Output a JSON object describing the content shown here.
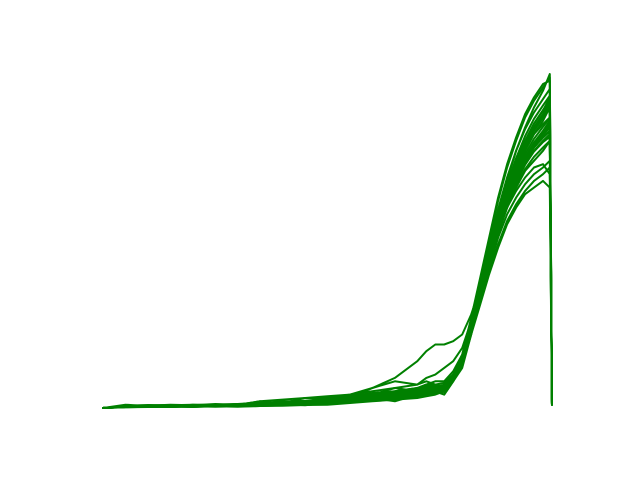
{
  "chart_data": {
    "type": "line",
    "title": "",
    "xlabel": "",
    "ylabel": "",
    "axes_visible": false,
    "grid": false,
    "legend": "none",
    "line_color": "#008000",
    "xlim": [
      0,
      1
    ],
    "ylim": [
      0,
      1
    ],
    "series_count": 30,
    "x": [
      0.0,
      0.05,
      0.1,
      0.15,
      0.2,
      0.25,
      0.3,
      0.35,
      0.4,
      0.45,
      0.5,
      0.55,
      0.6,
      0.65,
      0.7,
      0.72,
      0.74,
      0.76,
      0.78,
      0.8,
      0.82,
      0.84,
      0.86,
      0.88,
      0.9,
      0.92,
      0.94,
      0.96,
      0.98,
      0.995,
      1.0
    ],
    "series": [
      {
        "values": [
          0.0,
          0.005,
          0.003,
          0.008,
          0.004,
          0.006,
          0.01,
          0.02,
          0.012,
          0.008,
          0.015,
          0.02,
          0.025,
          0.03,
          0.035,
          0.05,
          0.05,
          0.04,
          0.08,
          0.12,
          0.22,
          0.34,
          0.46,
          0.58,
          0.68,
          0.77,
          0.84,
          0.9,
          0.95,
          1.0,
          0.01
        ]
      },
      {
        "values": [
          0.0,
          0.004,
          0.006,
          0.003,
          0.007,
          0.005,
          0.008,
          0.012,
          0.02,
          0.01,
          0.02,
          0.03,
          0.04,
          0.06,
          0.07,
          0.09,
          0.1,
          0.12,
          0.14,
          0.18,
          0.26,
          0.36,
          0.47,
          0.57,
          0.66,
          0.73,
          0.79,
          0.84,
          0.88,
          0.92,
          0.01
        ]
      },
      {
        "values": [
          0.0,
          0.01,
          0.005,
          0.004,
          0.01,
          0.008,
          0.006,
          0.01,
          0.015,
          0.03,
          0.03,
          0.04,
          0.06,
          0.08,
          0.07,
          0.08,
          0.07,
          0.05,
          0.09,
          0.14,
          0.24,
          0.35,
          0.46,
          0.56,
          0.64,
          0.71,
          0.77,
          0.82,
          0.86,
          0.9,
          0.01
        ]
      },
      {
        "values": [
          0.0,
          0.003,
          0.004,
          0.006,
          0.005,
          0.004,
          0.005,
          0.006,
          0.008,
          0.01,
          0.012,
          0.02,
          0.03,
          0.02,
          0.04,
          0.05,
          0.06,
          0.07,
          0.1,
          0.15,
          0.25,
          0.36,
          0.47,
          0.58,
          0.67,
          0.74,
          0.8,
          0.85,
          0.89,
          0.93,
          0.01
        ]
      },
      {
        "values": [
          0.0,
          0.006,
          0.007,
          0.01,
          0.008,
          0.012,
          0.01,
          0.02,
          0.025,
          0.03,
          0.035,
          0.04,
          0.05,
          0.06,
          0.05,
          0.06,
          0.05,
          0.04,
          0.08,
          0.13,
          0.23,
          0.33,
          0.43,
          0.53,
          0.6,
          0.66,
          0.71,
          0.74,
          0.77,
          0.8,
          0.01
        ]
      },
      {
        "values": [
          0.0,
          0.005,
          0.004,
          0.005,
          0.006,
          0.007,
          0.009,
          0.008,
          0.01,
          0.012,
          0.018,
          0.02,
          0.03,
          0.04,
          0.06,
          0.07,
          0.07,
          0.06,
          0.09,
          0.14,
          0.23,
          0.33,
          0.42,
          0.51,
          0.58,
          0.63,
          0.67,
          0.7,
          0.72,
          0.74,
          0.01
        ]
      },
      {
        "values": [
          0.0,
          0.002,
          0.003,
          0.004,
          0.003,
          0.005,
          0.004,
          0.006,
          0.007,
          0.009,
          0.01,
          0.015,
          0.02,
          0.025,
          0.03,
          0.035,
          0.04,
          0.05,
          0.09,
          0.15,
          0.26,
          0.38,
          0.5,
          0.62,
          0.72,
          0.8,
          0.87,
          0.92,
          0.96,
          0.99,
          0.01
        ]
      },
      {
        "values": [
          0.0,
          0.007,
          0.009,
          0.008,
          0.01,
          0.009,
          0.011,
          0.014,
          0.02,
          0.02,
          0.025,
          0.035,
          0.045,
          0.05,
          0.06,
          0.07,
          0.08,
          0.08,
          0.11,
          0.16,
          0.25,
          0.35,
          0.44,
          0.53,
          0.6,
          0.65,
          0.69,
          0.72,
          0.73,
          0.7,
          0.01
        ]
      },
      {
        "values": [
          0.0,
          0.004,
          0.005,
          0.003,
          0.005,
          0.006,
          0.008,
          0.01,
          0.012,
          0.015,
          0.02,
          0.03,
          0.06,
          0.09,
          0.14,
          0.17,
          0.19,
          0.19,
          0.2,
          0.22,
          0.28,
          0.36,
          0.45,
          0.54,
          0.62,
          0.69,
          0.75,
          0.79,
          0.82,
          0.85,
          0.01
        ]
      },
      {
        "values": [
          0.0,
          0.003,
          0.005,
          0.006,
          0.007,
          0.008,
          0.007,
          0.009,
          0.011,
          0.013,
          0.016,
          0.022,
          0.03,
          0.035,
          0.045,
          0.05,
          0.055,
          0.05,
          0.08,
          0.13,
          0.22,
          0.31,
          0.4,
          0.48,
          0.55,
          0.6,
          0.64,
          0.66,
          0.68,
          0.66,
          0.01
        ]
      },
      {
        "values": [
          0.0,
          0.005,
          0.006,
          0.007,
          0.006,
          0.01,
          0.012,
          0.015,
          0.018,
          0.022,
          0.028,
          0.03,
          0.035,
          0.04,
          0.045,
          0.05,
          0.055,
          0.06,
          0.1,
          0.16,
          0.27,
          0.39,
          0.51,
          0.63,
          0.73,
          0.81,
          0.88,
          0.93,
          0.97,
          0.98,
          0.01
        ]
      },
      {
        "values": [
          0.0,
          0.006,
          0.004,
          0.008,
          0.007,
          0.005,
          0.009,
          0.012,
          0.016,
          0.02,
          0.024,
          0.028,
          0.04,
          0.05,
          0.06,
          0.065,
          0.07,
          0.075,
          0.1,
          0.15,
          0.24,
          0.34,
          0.44,
          0.54,
          0.62,
          0.69,
          0.74,
          0.78,
          0.81,
          0.83,
          0.01
        ]
      },
      {
        "values": [
          0.0,
          0.004,
          0.003,
          0.005,
          0.004,
          0.006,
          0.007,
          0.008,
          0.009,
          0.011,
          0.013,
          0.017,
          0.022,
          0.028,
          0.035,
          0.04,
          0.045,
          0.05,
          0.09,
          0.15,
          0.25,
          0.36,
          0.47,
          0.57,
          0.66,
          0.73,
          0.78,
          0.82,
          0.85,
          0.87,
          0.01
        ]
      },
      {
        "values": [
          0.0,
          0.003,
          0.006,
          0.005,
          0.008,
          0.007,
          0.01,
          0.009,
          0.013,
          0.016,
          0.019,
          0.024,
          0.03,
          0.038,
          0.046,
          0.052,
          0.058,
          0.055,
          0.085,
          0.14,
          0.24,
          0.35,
          0.46,
          0.56,
          0.65,
          0.72,
          0.78,
          0.83,
          0.87,
          0.9,
          0.01
        ]
      },
      {
        "values": [
          0.0,
          0.005,
          0.007,
          0.006,
          0.009,
          0.008,
          0.011,
          0.013,
          0.015,
          0.018,
          0.023,
          0.027,
          0.033,
          0.04,
          0.05,
          0.058,
          0.065,
          0.06,
          0.09,
          0.14,
          0.23,
          0.32,
          0.41,
          0.49,
          0.56,
          0.61,
          0.65,
          0.68,
          0.7,
          0.72,
          0.01
        ]
      },
      {
        "values": [
          0.0,
          0.002,
          0.004,
          0.004,
          0.006,
          0.005,
          0.006,
          0.008,
          0.01,
          0.012,
          0.015,
          0.018,
          0.024,
          0.03,
          0.036,
          0.042,
          0.048,
          0.052,
          0.09,
          0.155,
          0.265,
          0.375,
          0.485,
          0.595,
          0.69,
          0.77,
          0.835,
          0.885,
          0.925,
          0.955,
          0.01
        ]
      },
      {
        "values": [
          0.0,
          0.006,
          0.005,
          0.007,
          0.005,
          0.007,
          0.009,
          0.011,
          0.014,
          0.017,
          0.021,
          0.026,
          0.032,
          0.039,
          0.047,
          0.054,
          0.06,
          0.063,
          0.095,
          0.148,
          0.238,
          0.334,
          0.43,
          0.52,
          0.6,
          0.665,
          0.715,
          0.752,
          0.78,
          0.8,
          0.01
        ]
      },
      {
        "values": [
          0.0,
          0.004,
          0.006,
          0.005,
          0.006,
          0.006,
          0.008,
          0.01,
          0.013,
          0.016,
          0.02,
          0.025,
          0.031,
          0.037,
          0.044,
          0.05,
          0.056,
          0.058,
          0.092,
          0.146,
          0.24,
          0.34,
          0.44,
          0.535,
          0.62,
          0.69,
          0.746,
          0.79,
          0.826,
          0.854,
          0.01
        ]
      },
      {
        "values": [
          0.0,
          0.005,
          0.003,
          0.006,
          0.005,
          0.009,
          0.01,
          0.012,
          0.014,
          0.017,
          0.022,
          0.028,
          0.036,
          0.045,
          0.055,
          0.062,
          0.068,
          0.066,
          0.098,
          0.15,
          0.245,
          0.345,
          0.445,
          0.54,
          0.625,
          0.695,
          0.75,
          0.795,
          0.83,
          0.86,
          0.01
        ]
      },
      {
        "values": [
          0.0,
          0.003,
          0.004,
          0.005,
          0.004,
          0.005,
          0.007,
          0.009,
          0.011,
          0.013,
          0.017,
          0.021,
          0.026,
          0.032,
          0.039,
          0.045,
          0.05,
          0.048,
          0.082,
          0.138,
          0.235,
          0.34,
          0.447,
          0.55,
          0.642,
          0.72,
          0.784,
          0.836,
          0.878,
          0.91,
          0.01
        ]
      },
      {
        "values": [
          0.0,
          0.005,
          0.005,
          0.006,
          0.006,
          0.008,
          0.009,
          0.011,
          0.012,
          0.015,
          0.019,
          0.024,
          0.03,
          0.036,
          0.043,
          0.049,
          0.054,
          0.056,
          0.089,
          0.143,
          0.236,
          0.335,
          0.434,
          0.528,
          0.61,
          0.678,
          0.73,
          0.77,
          0.8,
          0.82,
          0.01
        ]
      },
      {
        "values": [
          0.0,
          0.006,
          0.006,
          0.009,
          0.007,
          0.01,
          0.012,
          0.014,
          0.017,
          0.021,
          0.026,
          0.031,
          0.037,
          0.044,
          0.052,
          0.058,
          0.063,
          0.062,
          0.094,
          0.147,
          0.24,
          0.338,
          0.436,
          0.53,
          0.614,
          0.684,
          0.74,
          0.782,
          0.812,
          0.83,
          0.01
        ]
      },
      {
        "values": [
          0.0,
          0.004,
          0.004,
          0.004,
          0.005,
          0.006,
          0.007,
          0.008,
          0.01,
          0.012,
          0.015,
          0.019,
          0.024,
          0.03,
          0.037,
          0.043,
          0.048,
          0.05,
          0.086,
          0.145,
          0.248,
          0.358,
          0.468,
          0.574,
          0.668,
          0.748,
          0.814,
          0.866,
          0.906,
          0.935,
          0.01
        ]
      },
      {
        "values": [
          0.0,
          0.005,
          0.007,
          0.006,
          0.007,
          0.007,
          0.01,
          0.012,
          0.015,
          0.018,
          0.022,
          0.027,
          0.034,
          0.041,
          0.049,
          0.056,
          0.062,
          0.061,
          0.093,
          0.146,
          0.238,
          0.336,
          0.434,
          0.528,
          0.612,
          0.682,
          0.738,
          0.78,
          0.81,
          0.828,
          0.01
        ]
      },
      {
        "values": [
          0.0,
          0.003,
          0.005,
          0.004,
          0.006,
          0.006,
          0.008,
          0.01,
          0.012,
          0.014,
          0.018,
          0.023,
          0.029,
          0.035,
          0.042,
          0.048,
          0.053,
          0.054,
          0.088,
          0.144,
          0.242,
          0.348,
          0.454,
          0.556,
          0.646,
          0.722,
          0.784,
          0.832,
          0.87,
          0.898,
          0.01
        ]
      },
      {
        "values": [
          0.0,
          0.006,
          0.004,
          0.007,
          0.006,
          0.008,
          0.01,
          0.013,
          0.016,
          0.019,
          0.023,
          0.028,
          0.035,
          0.042,
          0.05,
          0.057,
          0.064,
          0.064,
          0.096,
          0.149,
          0.24,
          0.336,
          0.432,
          0.524,
          0.606,
          0.674,
          0.728,
          0.768,
          0.796,
          0.812,
          0.01
        ]
      },
      {
        "values": [
          0.0,
          0.004,
          0.005,
          0.006,
          0.005,
          0.007,
          0.009,
          0.011,
          0.013,
          0.016,
          0.02,
          0.025,
          0.031,
          0.038,
          0.046,
          0.052,
          0.057,
          0.058,
          0.091,
          0.146,
          0.242,
          0.344,
          0.446,
          0.544,
          0.63,
          0.702,
          0.76,
          0.806,
          0.842,
          0.868,
          0.01
        ]
      },
      {
        "values": [
          0.0,
          0.005,
          0.006,
          0.005,
          0.007,
          0.007,
          0.009,
          0.012,
          0.014,
          0.017,
          0.021,
          0.026,
          0.033,
          0.04,
          0.048,
          0.055,
          0.061,
          0.062,
          0.094,
          0.147,
          0.24,
          0.34,
          0.44,
          0.536,
          0.62,
          0.69,
          0.746,
          0.79,
          0.822,
          0.844,
          0.01
        ]
      },
      {
        "values": [
          0.0,
          0.003,
          0.003,
          0.005,
          0.005,
          0.006,
          0.008,
          0.009,
          0.011,
          0.014,
          0.017,
          0.021,
          0.027,
          0.033,
          0.04,
          0.046,
          0.051,
          0.052,
          0.087,
          0.145,
          0.246,
          0.354,
          0.462,
          0.566,
          0.658,
          0.736,
          0.8,
          0.852,
          0.892,
          0.922,
          0.01
        ]
      },
      {
        "values": [
          0.0,
          0.005,
          0.004,
          0.006,
          0.006,
          0.008,
          0.01,
          0.012,
          0.014,
          0.017,
          0.021,
          0.026,
          0.032,
          0.039,
          0.047,
          0.053,
          0.059,
          0.059,
          0.092,
          0.146,
          0.239,
          0.338,
          0.437,
          0.532,
          0.616,
          0.686,
          0.742,
          0.786,
          0.818,
          0.84,
          0.01
        ]
      }
    ]
  }
}
